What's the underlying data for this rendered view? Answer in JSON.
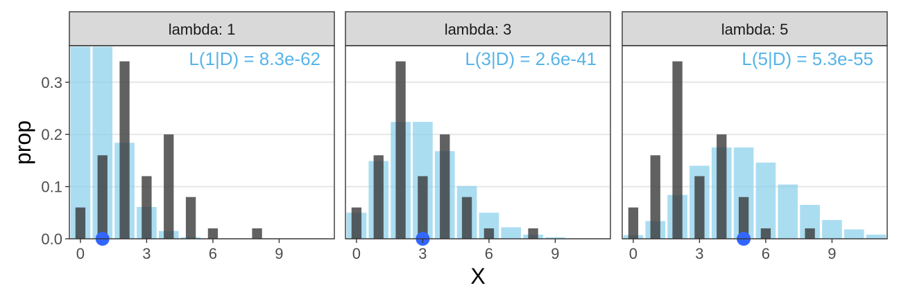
{
  "chart_data": {
    "type": "bar",
    "xlabel": "X",
    "ylabel": "prop",
    "xlim": [
      -0.5,
      11.5
    ],
    "ylim": [
      0,
      0.37
    ],
    "x_ticks": [
      0,
      3,
      6,
      9
    ],
    "y_ticks": [
      0.0,
      0.1,
      0.2,
      0.3
    ],
    "y_tick_labels": [
      "0.0",
      "0.1",
      "0.2",
      "0.3"
    ],
    "grid": true,
    "colors": {
      "model_bar": "#87CEEB",
      "observed_bar": "#3a3a3a",
      "point": "#3366FF",
      "annotation": "#56B4E9",
      "strip_fill": "#D9D9D9"
    },
    "observed": {
      "x": [
        0,
        1,
        2,
        3,
        4,
        5,
        6,
        8
      ],
      "prop": [
        0.06,
        0.16,
        0.34,
        0.12,
        0.2,
        0.08,
        0.02,
        0.02
      ]
    },
    "panels": [
      {
        "strip": "lambda: 1",
        "lambda": 1,
        "annotation": "L(1|D) = 8.3e-62",
        "x": [
          0,
          1,
          2,
          3,
          4,
          5,
          6,
          7,
          8,
          9,
          10,
          11
        ],
        "prop": [
          0.368,
          0.368,
          0.184,
          0.061,
          0.015,
          0.003,
          0.0005,
          0.0001,
          0.0,
          0.0,
          0.0,
          0.0
        ],
        "point_x": 1
      },
      {
        "strip": "lambda: 3",
        "lambda": 3,
        "annotation": "L(3|D) = 2.6e-41",
        "x": [
          0,
          1,
          2,
          3,
          4,
          5,
          6,
          7,
          8,
          9,
          10,
          11
        ],
        "prop": [
          0.05,
          0.149,
          0.224,
          0.224,
          0.168,
          0.101,
          0.05,
          0.022,
          0.008,
          0.003,
          0.0008,
          0.0002
        ],
        "point_x": 3
      },
      {
        "strip": "lambda: 5",
        "lambda": 5,
        "annotation": "L(5|D) = 5.3e-55",
        "x": [
          0,
          1,
          2,
          3,
          4,
          5,
          6,
          7,
          8,
          9,
          10,
          11
        ],
        "prop": [
          0.007,
          0.034,
          0.084,
          0.14,
          0.175,
          0.175,
          0.146,
          0.104,
          0.065,
          0.036,
          0.018,
          0.008
        ],
        "point_x": 5
      }
    ]
  }
}
